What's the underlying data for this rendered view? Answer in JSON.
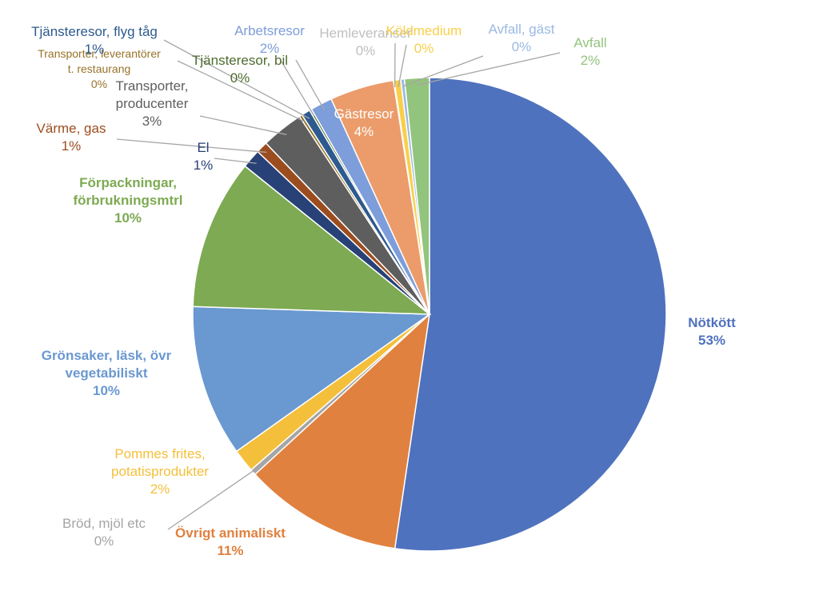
{
  "chart_data": {
    "type": "pie",
    "title": "",
    "slices": [
      {
        "name": "Nötkött",
        "value": 52.6,
        "label_pct": "53%",
        "color": "#4F72BE",
        "bold": true
      },
      {
        "name": "Övrigt animaliskt",
        "value": 10.9,
        "label_pct": "11%",
        "color": "#E0813F",
        "bold": true
      },
      {
        "name": "Bröd, mjöl etc",
        "value": 0.4,
        "label_pct": "0%",
        "color": "#A5A5A5",
        "bold": false
      },
      {
        "name": "Pommes frites, potatisprodukter",
        "value": 1.6,
        "label_pct": "2%",
        "color": "#F4BF3A",
        "bold": false
      },
      {
        "name": "Grönsaker, läsk, övr vegetabiliskt",
        "value": 10.4,
        "label_pct": "10%",
        "color": "#6A98D0",
        "bold": true
      },
      {
        "name": "Förpackningar, förbrukningsmtrl",
        "value": 10.3,
        "label_pct": "10%",
        "color": "#7DAA52",
        "bold": true
      },
      {
        "name": "El",
        "value": 1.3,
        "label_pct": "1%",
        "color": "#284176",
        "bold": false
      },
      {
        "name": "Värme, gas",
        "value": 0.8,
        "label_pct": "1%",
        "color": "#9C4D1F",
        "bold": false
      },
      {
        "name": "Transporter, producenter",
        "value": 2.9,
        "label_pct": "3%",
        "color": "#5E5E5E",
        "bold": false
      },
      {
        "name": "Transporter, leverantörer t. restaurang",
        "value": 0.2,
        "label_pct": "0%",
        "color": "#987329",
        "bold": false
      },
      {
        "name": "Tjänsteresor, flyg tåg",
        "value": 0.6,
        "label_pct": "1%",
        "color": "#2D5A8E",
        "bold": false
      },
      {
        "name": "Tjänsteresor, bil",
        "value": 0.15,
        "label_pct": "0%",
        "color": "#4E6B2E",
        "bold": false
      },
      {
        "name": "Arbetsresor",
        "value": 1.5,
        "label_pct": "2%",
        "color": "#7D9DDB",
        "bold": false
      },
      {
        "name": "Gästresor",
        "value": 4.4,
        "label_pct": "4%",
        "color": "#EB9C6A",
        "bold": false
      },
      {
        "name": "Hemleveranser",
        "value": 0.05,
        "label_pct": "0%",
        "color": "#BFBFBF",
        "bold": false
      },
      {
        "name": "Köldmedium",
        "value": 0.45,
        "label_pct": "0%",
        "color": "#F8CF4A",
        "bold": false
      },
      {
        "name": "Avfall, gäst",
        "value": 0.25,
        "label_pct": "0%",
        "color": "#9BB9E3",
        "bold": false
      },
      {
        "name": "Avfall",
        "value": 1.7,
        "label_pct": "2%",
        "color": "#93C47D",
        "bold": false
      }
    ]
  }
}
